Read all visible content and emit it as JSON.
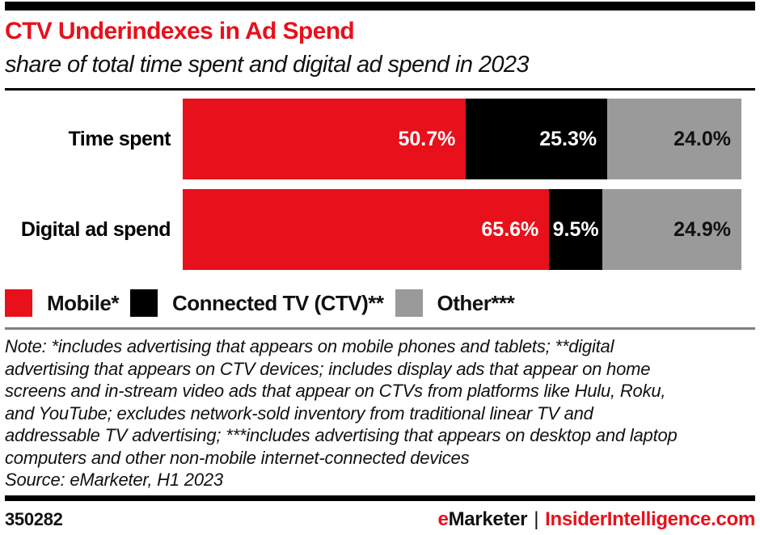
{
  "header": {
    "title": "CTV Underindexes in Ad Spend",
    "subtitle": "share of total time spent and digital ad spend in 2023"
  },
  "colors": {
    "brand_red": "#e8101b",
    "bar_red": "#e8101b",
    "bar_black": "#000000",
    "bar_gray": "#9a9a9a",
    "divider_gray": "#808080"
  },
  "chart_data": {
    "type": "bar",
    "orientation": "horizontal",
    "stacked": true,
    "unit": "%",
    "xlim": [
      0,
      100
    ],
    "grid": false,
    "legend_position": "bottom",
    "categories": [
      "Time spent",
      "Digital ad spend"
    ],
    "series": [
      {
        "name": "Mobile*",
        "color": "#e8101b",
        "values": [
          50.7,
          65.6
        ]
      },
      {
        "name": "Connected TV (CTV)**",
        "color": "#000000",
        "values": [
          25.3,
          9.5
        ]
      },
      {
        "name": "Other***",
        "color": "#9a9a9a",
        "values": [
          24.0,
          24.9
        ]
      }
    ],
    "value_labels": [
      [
        "50.7%",
        "25.3%",
        "24.0%"
      ],
      [
        "65.6%",
        "9.5%",
        "24.9%"
      ]
    ]
  },
  "note": {
    "lines": [
      "Note: *includes advertising that appears on mobile phones and tablets; **digital",
      "advertising that appears on CTV devices; includes display ads that appear on home",
      "screens and in-stream video ads that appear on CTVs from platforms like Hulu, Roku,",
      "and YouTube; excludes network-sold inventory from traditional linear TV and",
      "addressable TV advertising; ***includes advertising that appears on desktop and laptop",
      "computers and other non-mobile internet-connected devices"
    ],
    "source": "Source: eMarketer, H1 2023"
  },
  "footer": {
    "chart_id": "350282",
    "brand_e": "e",
    "brand_rest": "Marketer",
    "separator": "|",
    "site": "InsiderIntelligence.com"
  }
}
